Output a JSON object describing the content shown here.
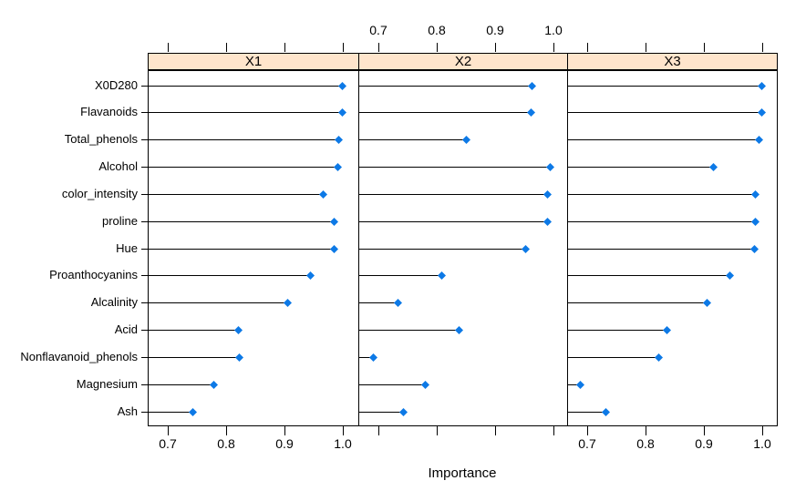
{
  "chart_data": {
    "type": "scatter",
    "subtype": "trellis-dotplot",
    "title": "",
    "xlabel": "Importance",
    "ylabel": "",
    "panels": [
      "X1",
      "X2",
      "X3"
    ],
    "categories": [
      "X0D280",
      "Flavanoids",
      "Total_phenols",
      "Alcohol",
      "color_intensity",
      "proline",
      "Hue",
      "Proanthocyanins",
      "Alcalinity",
      "Acid",
      "Nonflavanoid_phenols",
      "Magnesium",
      "Ash"
    ],
    "series": [
      {
        "name": "X1",
        "values": [
          0.999,
          0.999,
          0.992,
          0.991,
          0.966,
          0.985,
          0.985,
          0.944,
          0.905,
          0.82,
          0.822,
          0.778,
          0.742
        ]
      },
      {
        "name": "X2",
        "values": [
          0.962,
          0.961,
          0.85,
          0.994,
          0.989,
          0.989,
          0.952,
          0.808,
          0.733,
          0.838,
          0.691,
          0.78,
          0.742
        ]
      },
      {
        "name": "X3",
        "values": [
          0.998,
          0.999,
          0.993,
          0.916,
          0.988,
          0.987,
          0.986,
          0.944,
          0.905,
          0.836,
          0.822,
          0.687,
          0.732
        ]
      }
    ],
    "xticks": [
      0.7,
      0.8,
      0.9,
      1.0
    ],
    "xtick_labels": [
      "0.7",
      "0.8",
      "0.9",
      "1.0"
    ],
    "xlim": [
      0.666,
      1.026
    ],
    "grid": false,
    "legend": "none",
    "axis_layout": {
      "top_labels_panel": "X2",
      "bottom_labels_panels": [
        "X1",
        "X3"
      ],
      "ticks_on_all_panels": true
    },
    "colors": {
      "point": "#0d79e6",
      "line": "#000000",
      "strip_background": "#ffe5cc",
      "border": "#000000",
      "background": "#ffffff"
    }
  }
}
